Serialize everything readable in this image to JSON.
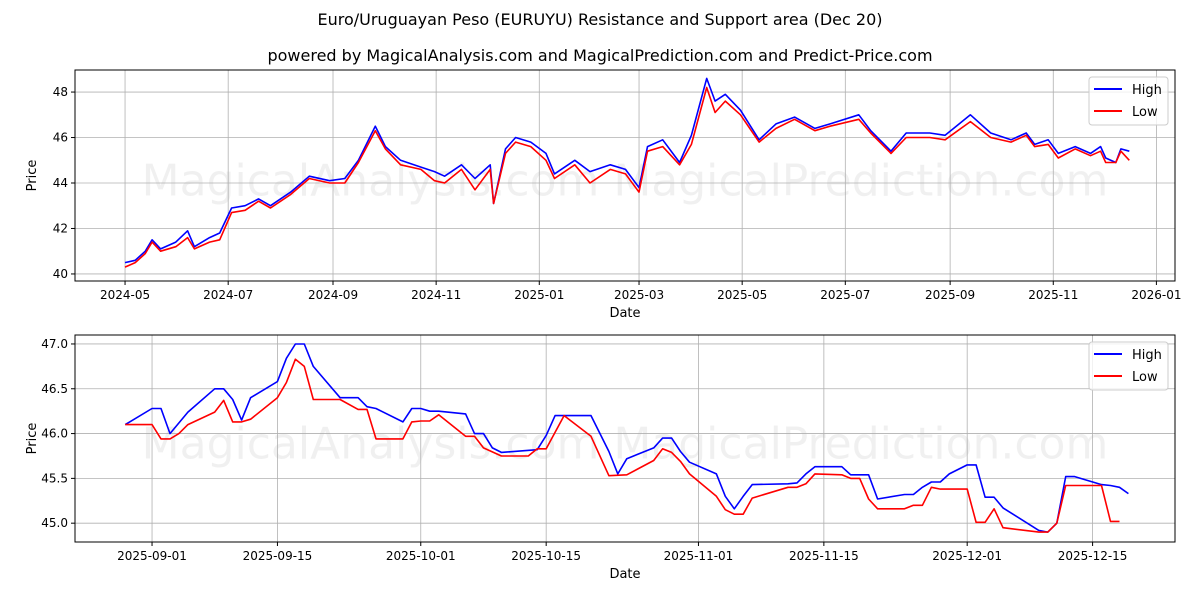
{
  "title": "Euro/Uruguayan Peso (EURUYU) Resistance and Support area (Dec 20)",
  "subtitle": "powered by MagicalAnalysis.com and MagicalPrediction.com and Predict-Price.com",
  "watermarks": [
    "MagicalAnalysis.com",
    "MagicalPrediction.com"
  ],
  "colors": {
    "high": "#0000ff",
    "low": "#ff0000"
  },
  "chart_data": [
    {
      "type": "line",
      "xlabel": "Date",
      "ylabel": "Price",
      "x_unit": "days since 2024-05-01",
      "xlim": [
        -29.6,
        621
      ],
      "ylim": [
        39.69,
        48.97
      ],
      "grid": true,
      "legend": "top-right",
      "xticks": [
        {
          "v": 0,
          "label": "2024-05"
        },
        {
          "v": 61,
          "label": "2024-07"
        },
        {
          "v": 123,
          "label": "2024-09"
        },
        {
          "v": 184,
          "label": "2024-11"
        },
        {
          "v": 245,
          "label": "2025-01"
        },
        {
          "v": 304,
          "label": "2025-03"
        },
        {
          "v": 365,
          "label": "2025-05"
        },
        {
          "v": 426,
          "label": "2025-07"
        },
        {
          "v": 488,
          "label": "2025-09"
        },
        {
          "v": 549,
          "label": "2025-11"
        },
        {
          "v": 610,
          "label": "2026-01"
        }
      ],
      "yticks": [
        {
          "v": 40,
          "label": "40"
        },
        {
          "v": 42,
          "label": "42"
        },
        {
          "v": 44,
          "label": "44"
        },
        {
          "v": 46,
          "label": "46"
        },
        {
          "v": 48,
          "label": "48"
        }
      ],
      "x": [
        0,
        6,
        12,
        16,
        21,
        30,
        37,
        41,
        50,
        56,
        63,
        71,
        79,
        86,
        98,
        109,
        121,
        130,
        138,
        148,
        154,
        163,
        175,
        183,
        189,
        199,
        207,
        216,
        218,
        225,
        231,
        240,
        249,
        254,
        266,
        275,
        287,
        296,
        304,
        309,
        318,
        328,
        335,
        344,
        349,
        355,
        364,
        375,
        385,
        396,
        408,
        417,
        434,
        441,
        453,
        462,
        476,
        485,
        500,
        512,
        524,
        533,
        538,
        546,
        552,
        562,
        571,
        577,
        580,
        586,
        589,
        594
      ],
      "series": [
        {
          "name": "High",
          "values": [
            40.5,
            40.6,
            41.0,
            41.5,
            41.1,
            41.4,
            41.9,
            41.2,
            41.6,
            41.8,
            42.9,
            43.0,
            43.3,
            43.0,
            43.6,
            44.3,
            44.1,
            44.2,
            45.0,
            46.5,
            45.6,
            45.0,
            44.7,
            44.5,
            44.3,
            44.8,
            44.2,
            44.8,
            43.1,
            45.5,
            46.0,
            45.8,
            45.3,
            44.4,
            45.0,
            44.5,
            44.8,
            44.6,
            43.8,
            45.6,
            45.9,
            44.9,
            46.1,
            48.6,
            47.6,
            47.9,
            47.2,
            45.9,
            46.6,
            46.9,
            46.4,
            46.6,
            47.0,
            46.3,
            45.4,
            46.2,
            46.2,
            46.1,
            47.0,
            46.2,
            45.9,
            46.2,
            45.7,
            45.9,
            45.3,
            45.6,
            45.3,
            45.6,
            45.1,
            44.9,
            45.5,
            45.4
          ]
        },
        {
          "name": "Low",
          "values": [
            40.3,
            40.5,
            40.9,
            41.4,
            41.0,
            41.2,
            41.6,
            41.1,
            41.4,
            41.5,
            42.7,
            42.8,
            43.2,
            42.9,
            43.5,
            44.2,
            44.0,
            44.0,
            44.9,
            46.3,
            45.5,
            44.8,
            44.6,
            44.1,
            44.0,
            44.6,
            43.7,
            44.6,
            43.1,
            45.3,
            45.8,
            45.6,
            45.0,
            44.2,
            44.8,
            44.0,
            44.6,
            44.4,
            43.6,
            45.4,
            45.6,
            44.8,
            45.7,
            48.2,
            47.1,
            47.6,
            47.0,
            45.8,
            46.4,
            46.8,
            46.3,
            46.5,
            46.8,
            46.2,
            45.3,
            46.0,
            46.0,
            45.9,
            46.7,
            46.0,
            45.8,
            46.1,
            45.6,
            45.7,
            45.1,
            45.5,
            45.2,
            45.4,
            44.9,
            44.9,
            45.4,
            45.0
          ]
        }
      ]
    },
    {
      "type": "line",
      "xlabel": "Date",
      "ylabel": "Price",
      "x_unit": "days since 2025-09-01",
      "xlim": [
        -8.6,
        114.2
      ],
      "ylim": [
        44.79,
        47.1
      ],
      "grid": true,
      "legend": "top-right",
      "xticks": [
        {
          "v": 0,
          "label": "2025-09-01"
        },
        {
          "v": 14,
          "label": "2025-09-15"
        },
        {
          "v": 30,
          "label": "2025-10-01"
        },
        {
          "v": 44,
          "label": "2025-10-15"
        },
        {
          "v": 61,
          "label": "2025-11-01"
        },
        {
          "v": 75,
          "label": "2025-11-15"
        },
        {
          "v": 91,
          "label": "2025-12-01"
        },
        {
          "v": 105,
          "label": "2025-12-15"
        }
      ],
      "yticks": [
        {
          "v": 45.0,
          "label": "45.0"
        },
        {
          "v": 45.5,
          "label": "45.5"
        },
        {
          "v": 46.0,
          "label": "46.0"
        },
        {
          "v": 46.5,
          "label": "46.5"
        },
        {
          "v": 47.0,
          "label": "47.0"
        }
      ],
      "series": [
        {
          "name": "High",
          "x": [
            -3,
            0,
            1,
            2,
            4,
            7,
            8,
            9,
            10,
            11,
            14,
            15,
            16,
            17,
            18,
            21,
            23,
            24,
            25,
            28,
            29,
            30,
            31,
            32,
            35,
            36,
            37,
            38,
            39,
            43,
            44,
            45,
            49,
            51,
            52,
            53,
            56,
            57,
            58,
            59,
            60,
            63,
            64,
            65,
            66,
            67,
            71,
            72,
            73,
            74,
            77,
            78,
            80,
            81,
            84,
            85,
            86,
            87,
            88,
            89,
            91,
            92,
            93,
            94,
            95,
            99,
            100,
            101,
            102,
            103,
            106,
            107,
            108,
            109
          ],
          "values": [
            46.1,
            46.28,
            46.28,
            46.0,
            46.24,
            46.5,
            46.5,
            46.38,
            46.15,
            46.4,
            46.58,
            46.84,
            47.0,
            47.0,
            46.75,
            46.4,
            46.4,
            46.3,
            46.28,
            46.13,
            46.28,
            46.28,
            46.25,
            46.25,
            46.22,
            46.0,
            46.0,
            45.84,
            45.79,
            45.82,
            45.98,
            46.2,
            46.2,
            45.8,
            45.55,
            45.72,
            45.84,
            45.95,
            45.95,
            45.8,
            45.68,
            45.55,
            45.3,
            45.16,
            45.3,
            45.43,
            45.44,
            45.45,
            45.55,
            45.63,
            45.63,
            45.54,
            45.54,
            45.27,
            45.32,
            45.32,
            45.4,
            45.46,
            45.46,
            45.55,
            45.65,
            45.65,
            45.29,
            45.29,
            45.17,
            44.92,
            44.9,
            45.0,
            45.52,
            45.52,
            45.43,
            45.42,
            45.4,
            45.33
          ]
        },
        {
          "name": "Low",
          "x": [
            -3,
            0,
            1,
            2,
            3,
            4,
            7,
            8,
            9,
            10,
            11,
            14,
            15,
            16,
            17,
            18,
            21,
            23,
            24,
            25,
            28,
            29,
            30,
            31,
            32,
            35,
            36,
            37,
            39,
            42,
            43,
            44,
            46,
            49,
            51,
            53,
            56,
            57,
            58,
            59,
            60,
            63,
            64,
            65,
            66,
            67,
            71,
            72,
            73,
            74,
            77,
            78,
            79,
            80,
            81,
            84,
            85,
            86,
            87,
            88,
            91,
            92,
            93,
            94,
            95,
            99,
            100,
            101,
            102,
            106,
            107,
            108
          ],
          "values": [
            46.1,
            46.1,
            45.94,
            45.94,
            46.0,
            46.1,
            46.24,
            46.37,
            46.13,
            46.13,
            46.16,
            46.4,
            46.57,
            46.83,
            46.75,
            46.38,
            46.38,
            46.27,
            46.27,
            45.94,
            45.94,
            46.13,
            46.14,
            46.14,
            46.21,
            45.97,
            45.97,
            45.84,
            45.75,
            45.75,
            45.83,
            45.83,
            46.2,
            45.97,
            45.53,
            45.54,
            45.7,
            45.83,
            45.79,
            45.69,
            45.55,
            45.3,
            45.15,
            45.1,
            45.1,
            45.28,
            45.4,
            45.4,
            45.44,
            45.55,
            45.54,
            45.5,
            45.5,
            45.27,
            45.16,
            45.16,
            45.2,
            45.2,
            45.4,
            45.38,
            45.38,
            45.01,
            45.01,
            45.16,
            44.95,
            44.9,
            44.9,
            45.0,
            45.42,
            45.42,
            45.02,
            45.02
          ]
        }
      ]
    }
  ]
}
